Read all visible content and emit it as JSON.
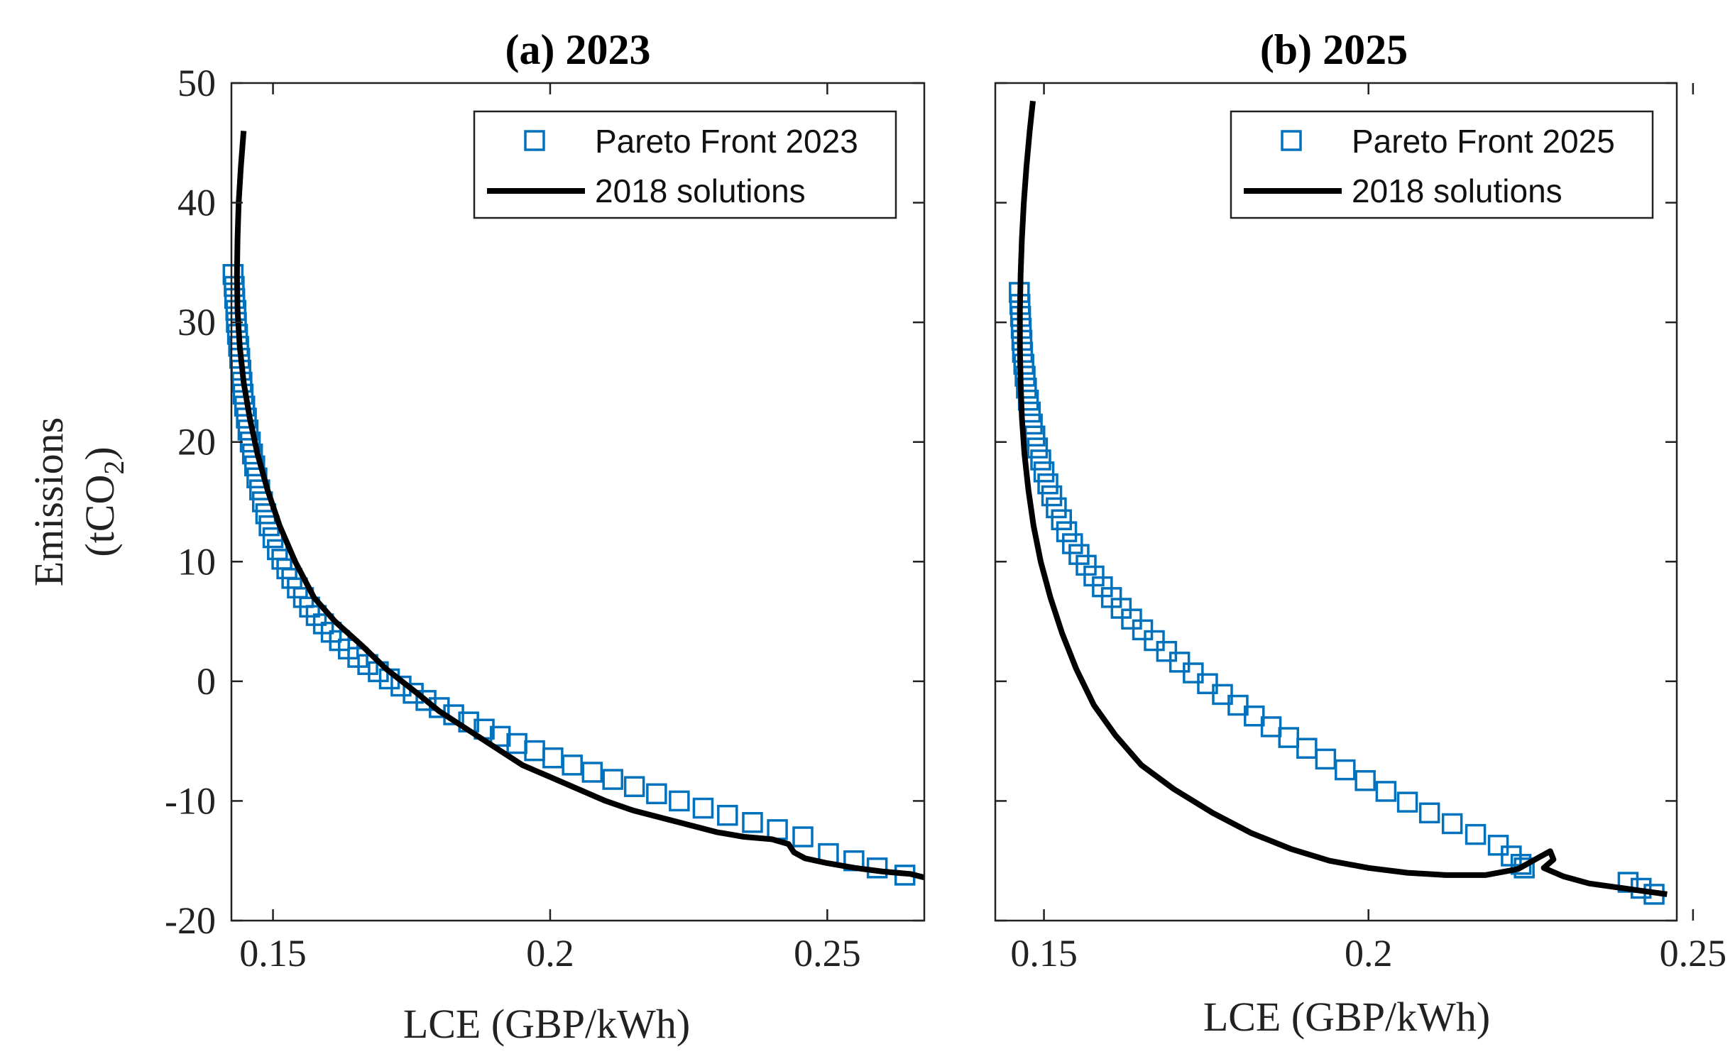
{
  "chart_data": [
    {
      "type": "scatter",
      "title": "(a) 2023",
      "xlabel": "LCE (GBP/kWh)",
      "ylabel_line1": "Emissions",
      "ylabel_line2": "(tCO",
      "ylabel_sub": "2",
      "ylabel_close": ")",
      "xlim": [
        0.1425,
        0.2675
      ],
      "ylim": [
        -20,
        50
      ],
      "xticks": [
        0.15,
        0.2,
        0.25
      ],
      "xtick_labels": [
        "0.15",
        "0.2",
        "0.25"
      ],
      "yticks": [
        -20,
        -10,
        0,
        10,
        20,
        30,
        40,
        50
      ],
      "ytick_labels": [
        "-20",
        "-10",
        "0",
        "10",
        "20",
        "30",
        "40",
        "50"
      ],
      "legend_position": "top-right",
      "series": [
        {
          "name": "Pareto Front 2023",
          "kind": "markers",
          "marker": "square",
          "color": "#0072BD",
          "x": [
            0.1428,
            0.143,
            0.1431,
            0.1433,
            0.1434,
            0.1436,
            0.1438,
            0.144,
            0.1442,
            0.1444,
            0.1446,
            0.1449,
            0.1452,
            0.1455,
            0.1459,
            0.1463,
            0.1467,
            0.1471,
            0.1476,
            0.1481,
            0.1487,
            0.1493,
            0.15,
            0.1508,
            0.1516,
            0.1525,
            0.1534,
            0.1544,
            0.1555,
            0.1566,
            0.1578,
            0.1591,
            0.1605,
            0.162,
            0.1636,
            0.1653,
            0.1671,
            0.169,
            0.171,
            0.1731,
            0.1753,
            0.1776,
            0.18,
            0.1826,
            0.1853,
            0.1881,
            0.191,
            0.194,
            0.1972,
            0.2005,
            0.204,
            0.2076,
            0.2113,
            0.2152,
            0.2192,
            0.2233,
            0.2276,
            0.232,
            0.2365,
            0.241,
            0.2456,
            0.2502,
            0.2548,
            0.259,
            0.264
          ],
          "y": [
            34.0,
            33.0,
            32.0,
            31.0,
            30.0,
            29.0,
            28.0,
            27.0,
            26.0,
            25.0,
            24.0,
            23.0,
            22.0,
            21.0,
            20.0,
            19.0,
            18.0,
            17.0,
            16.0,
            15.0,
            14.0,
            13.0,
            12.0,
            11.0,
            10.2,
            9.4,
            8.6,
            7.8,
            7.0,
            6.2,
            5.5,
            4.8,
            4.1,
            3.4,
            2.7,
            2.0,
            1.4,
            0.8,
            0.2,
            -0.4,
            -1.0,
            -1.6,
            -2.2,
            -2.8,
            -3.4,
            -4.0,
            -4.6,
            -5.2,
            -5.8,
            -6.4,
            -7.0,
            -7.6,
            -8.2,
            -8.8,
            -9.4,
            -10.0,
            -10.6,
            -11.2,
            -11.8,
            -12.4,
            -13.0,
            -14.4,
            -15.0,
            -15.6,
            -16.2
          ]
        },
        {
          "name": "2018 solutions",
          "kind": "line",
          "color": "#000000",
          "x": [
            0.1447,
            0.1442,
            0.1438,
            0.1436,
            0.1435,
            0.1436,
            0.144,
            0.1447,
            0.1458,
            0.1472,
            0.149,
            0.1512,
            0.154,
            0.1574,
            0.1612,
            0.166,
            0.1705,
            0.176,
            0.18,
            0.185,
            0.19,
            0.195,
            0.2,
            0.205,
            0.21,
            0.215,
            0.22,
            0.225,
            0.23,
            0.235,
            0.24,
            0.243,
            0.244,
            0.246,
            0.25,
            0.255,
            0.26,
            0.265,
            0.2675
          ],
          "y": [
            46.0,
            43.0,
            40.0,
            37.0,
            34.0,
            31.0,
            28.0,
            25.0,
            22.0,
            19.0,
            16.0,
            13.0,
            10.0,
            7.0,
            5.0,
            3.0,
            1.0,
            -1.0,
            -2.5,
            -4.0,
            -5.5,
            -7.0,
            -8.0,
            -9.0,
            -10.0,
            -10.8,
            -11.4,
            -12.0,
            -12.6,
            -13.0,
            -13.2,
            -13.6,
            -14.3,
            -14.8,
            -15.2,
            -15.6,
            -15.9,
            -16.1,
            -16.4
          ]
        }
      ]
    },
    {
      "type": "scatter",
      "title": "(b) 2025",
      "xlabel": "LCE (GBP/kWh)",
      "xlim": [
        0.1425,
        0.2475
      ],
      "ylim": [
        -20,
        50
      ],
      "xticks": [
        0.15,
        0.2,
        0.25
      ],
      "xtick_labels": [
        "0.15",
        "0.2",
        "0.25"
      ],
      "legend_position": "top-right",
      "series": [
        {
          "name": "Pareto Front 2025",
          "kind": "markers",
          "marker": "square",
          "color": "#0072BD",
          "x": [
            0.1462,
            0.1463,
            0.1464,
            0.1465,
            0.1466,
            0.1467,
            0.1469,
            0.1471,
            0.1473,
            0.1476,
            0.1479,
            0.1482,
            0.1486,
            0.149,
            0.1495,
            0.15,
            0.1506,
            0.1512,
            0.1519,
            0.1527,
            0.1535,
            0.1544,
            0.1554,
            0.1565,
            0.1577,
            0.159,
            0.1604,
            0.1619,
            0.1635,
            0.1652,
            0.167,
            0.1689,
            0.1709,
            0.173,
            0.1752,
            0.1775,
            0.1799,
            0.1824,
            0.185,
            0.1877,
            0.1905,
            0.1934,
            0.1964,
            0.1995,
            0.2027,
            0.206,
            0.2094,
            0.2129,
            0.2165,
            0.22,
            0.222,
            0.2235,
            0.224,
            0.24,
            0.242,
            0.244
          ],
          "y": [
            32.5,
            31.5,
            30.5,
            29.5,
            28.5,
            27.5,
            26.5,
            25.5,
            24.5,
            23.5,
            22.5,
            21.5,
            20.5,
            19.5,
            18.5,
            17.5,
            16.5,
            15.5,
            14.5,
            13.5,
            12.5,
            11.5,
            10.6,
            9.7,
            8.8,
            7.9,
            7.0,
            6.1,
            5.2,
            4.3,
            3.4,
            2.5,
            1.6,
            0.7,
            -0.2,
            -1.1,
            -2.0,
            -2.9,
            -3.8,
            -4.7,
            -5.6,
            -6.5,
            -7.4,
            -8.3,
            -9.2,
            -10.1,
            -11.0,
            -11.9,
            -12.8,
            -13.7,
            -14.6,
            -15.3,
            -15.6,
            -16.8,
            -17.3,
            -17.8
          ]
        },
        {
          "name": "2018 solutions",
          "kind": "line",
          "color": "#000000",
          "x": [
            0.1483,
            0.1478,
            0.1473,
            0.1469,
            0.1466,
            0.1464,
            0.1463,
            0.1463,
            0.1464,
            0.1466,
            0.147,
            0.1476,
            0.1484,
            0.1495,
            0.151,
            0.1528,
            0.155,
            0.1577,
            0.161,
            0.165,
            0.17,
            0.176,
            0.182,
            0.188,
            0.194,
            0.2,
            0.206,
            0.212,
            0.218,
            0.223,
            0.226,
            0.228,
            0.2285,
            0.227,
            0.23,
            0.234,
            0.238,
            0.242,
            0.246
          ],
          "y": [
            48.5,
            46.0,
            43.0,
            40.0,
            37.0,
            34.0,
            31.0,
            28.0,
            25.0,
            22.0,
            19.0,
            16.0,
            13.0,
            10.0,
            7.0,
            4.0,
            1.0,
            -2.0,
            -4.5,
            -7.0,
            -9.0,
            -11.0,
            -12.7,
            -14.0,
            -15.0,
            -15.6,
            -16.0,
            -16.2,
            -16.2,
            -15.7,
            -14.8,
            -14.2,
            -14.9,
            -15.6,
            -16.3,
            -16.9,
            -17.2,
            -17.5,
            -17.8
          ]
        }
      ]
    }
  ]
}
